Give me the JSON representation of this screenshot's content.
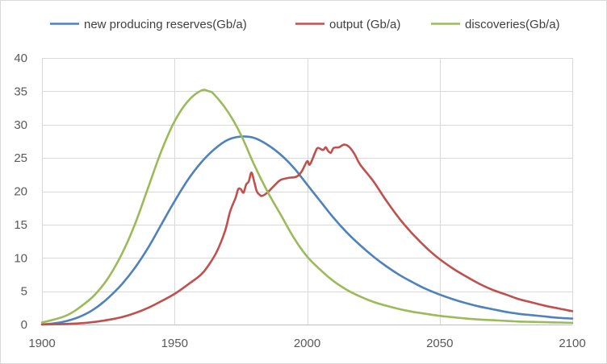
{
  "chart_data": {
    "type": "line",
    "title": "",
    "xlabel": "",
    "ylabel": "",
    "xlim": [
      1900,
      2100
    ],
    "ylim": [
      0,
      40
    ],
    "x_ticks": [
      1900,
      1950,
      2000,
      2050,
      2100
    ],
    "y_ticks": [
      0,
      5,
      10,
      15,
      20,
      25,
      30,
      35,
      40
    ],
    "grid": "vertical and horizontal",
    "legend_position": "top",
    "series": [
      {
        "name": "new producing reserves(Gb/a)",
        "color": "#4f81bd",
        "points": [
          [
            1900,
            0
          ],
          [
            1905,
            0.2
          ],
          [
            1910,
            0.6
          ],
          [
            1915,
            1.3
          ],
          [
            1920,
            2.4
          ],
          [
            1925,
            4.0
          ],
          [
            1930,
            6.0
          ],
          [
            1935,
            8.5
          ],
          [
            1940,
            11.5
          ],
          [
            1945,
            15.0
          ],
          [
            1950,
            18.5
          ],
          [
            1955,
            21.7
          ],
          [
            1960,
            24.3
          ],
          [
            1965,
            26.3
          ],
          [
            1970,
            27.7
          ],
          [
            1975,
            28.2
          ],
          [
            1980,
            28.0
          ],
          [
            1985,
            27.0
          ],
          [
            1990,
            25.5
          ],
          [
            1995,
            23.5
          ],
          [
            2000,
            21.0
          ],
          [
            2005,
            18.5
          ],
          [
            2010,
            16.0
          ],
          [
            2015,
            13.8
          ],
          [
            2020,
            11.9
          ],
          [
            2025,
            10.2
          ],
          [
            2030,
            8.7
          ],
          [
            2035,
            7.4
          ],
          [
            2040,
            6.3
          ],
          [
            2045,
            5.3
          ],
          [
            2050,
            4.5
          ],
          [
            2055,
            3.8
          ],
          [
            2060,
            3.2
          ],
          [
            2065,
            2.7
          ],
          [
            2070,
            2.3
          ],
          [
            2075,
            1.9
          ],
          [
            2080,
            1.6
          ],
          [
            2085,
            1.4
          ],
          [
            2090,
            1.2
          ],
          [
            2095,
            1.0
          ],
          [
            2100,
            0.9
          ]
        ]
      },
      {
        "name": "output (Gb/a)",
        "color": "#c0504d",
        "points": [
          [
            1900,
            0
          ],
          [
            1905,
            0.05
          ],
          [
            1910,
            0.1
          ],
          [
            1915,
            0.2
          ],
          [
            1920,
            0.4
          ],
          [
            1925,
            0.7
          ],
          [
            1930,
            1.1
          ],
          [
            1935,
            1.7
          ],
          [
            1940,
            2.5
          ],
          [
            1945,
            3.5
          ],
          [
            1950,
            4.6
          ],
          [
            1955,
            6.0
          ],
          [
            1960,
            7.5
          ],
          [
            1963,
            9.0
          ],
          [
            1966,
            11.0
          ],
          [
            1969,
            14.0
          ],
          [
            1971,
            17.0
          ],
          [
            1973,
            19.0
          ],
          [
            1974,
            20.3
          ],
          [
            1975,
            20.3
          ],
          [
            1976,
            19.8
          ],
          [
            1977,
            21.0
          ],
          [
            1978,
            21.5
          ],
          [
            1979,
            22.8
          ],
          [
            1980,
            21.5
          ],
          [
            1981,
            20.0
          ],
          [
            1982,
            19.5
          ],
          [
            1983,
            19.3
          ],
          [
            1985,
            19.8
          ],
          [
            1988,
            21.0
          ],
          [
            1990,
            21.7
          ],
          [
            1993,
            22.0
          ],
          [
            1996,
            22.2
          ],
          [
            1998,
            23.0
          ],
          [
            2000,
            24.5
          ],
          [
            2001,
            24.0
          ],
          [
            2003,
            25.8
          ],
          [
            2004,
            26.5
          ],
          [
            2006,
            26.2
          ],
          [
            2007,
            26.6
          ],
          [
            2008,
            26.0
          ],
          [
            2009,
            25.8
          ],
          [
            2010,
            26.5
          ],
          [
            2012,
            26.6
          ],
          [
            2014,
            27.0
          ],
          [
            2016,
            26.6
          ],
          [
            2018,
            25.5
          ],
          [
            2020,
            24.0
          ],
          [
            2025,
            21.5
          ],
          [
            2030,
            18.5
          ],
          [
            2035,
            15.8
          ],
          [
            2040,
            13.5
          ],
          [
            2045,
            11.5
          ],
          [
            2050,
            9.8
          ],
          [
            2055,
            8.4
          ],
          [
            2060,
            7.2
          ],
          [
            2065,
            6.1
          ],
          [
            2070,
            5.2
          ],
          [
            2075,
            4.5
          ],
          [
            2080,
            3.8
          ],
          [
            2085,
            3.3
          ],
          [
            2090,
            2.8
          ],
          [
            2095,
            2.4
          ],
          [
            2100,
            2.0
          ]
        ]
      },
      {
        "name": "discoveries(Gb/a)",
        "color": "#9bbb59",
        "points": [
          [
            1900,
            0.3
          ],
          [
            1905,
            0.8
          ],
          [
            1910,
            1.5
          ],
          [
            1915,
            2.8
          ],
          [
            1920,
            4.5
          ],
          [
            1925,
            7.0
          ],
          [
            1930,
            10.5
          ],
          [
            1935,
            15.0
          ],
          [
            1940,
            20.5
          ],
          [
            1945,
            26.0
          ],
          [
            1950,
            30.5
          ],
          [
            1955,
            33.5
          ],
          [
            1960,
            35.1
          ],
          [
            1963,
            35.0
          ],
          [
            1965,
            34.5
          ],
          [
            1970,
            32.0
          ],
          [
            1975,
            28.5
          ],
          [
            1980,
            24.0
          ],
          [
            1985,
            20.0
          ],
          [
            1990,
            16.5
          ],
          [
            1995,
            13.0
          ],
          [
            2000,
            10.2
          ],
          [
            2005,
            8.2
          ],
          [
            2010,
            6.5
          ],
          [
            2015,
            5.2
          ],
          [
            2020,
            4.2
          ],
          [
            2025,
            3.4
          ],
          [
            2030,
            2.8
          ],
          [
            2035,
            2.3
          ],
          [
            2040,
            1.9
          ],
          [
            2045,
            1.6
          ],
          [
            2050,
            1.3
          ],
          [
            2055,
            1.1
          ],
          [
            2060,
            0.9
          ],
          [
            2065,
            0.75
          ],
          [
            2070,
            0.65
          ],
          [
            2075,
            0.55
          ],
          [
            2080,
            0.45
          ],
          [
            2085,
            0.4
          ],
          [
            2090,
            0.35
          ],
          [
            2095,
            0.3
          ],
          [
            2100,
            0.25
          ]
        ]
      }
    ]
  }
}
